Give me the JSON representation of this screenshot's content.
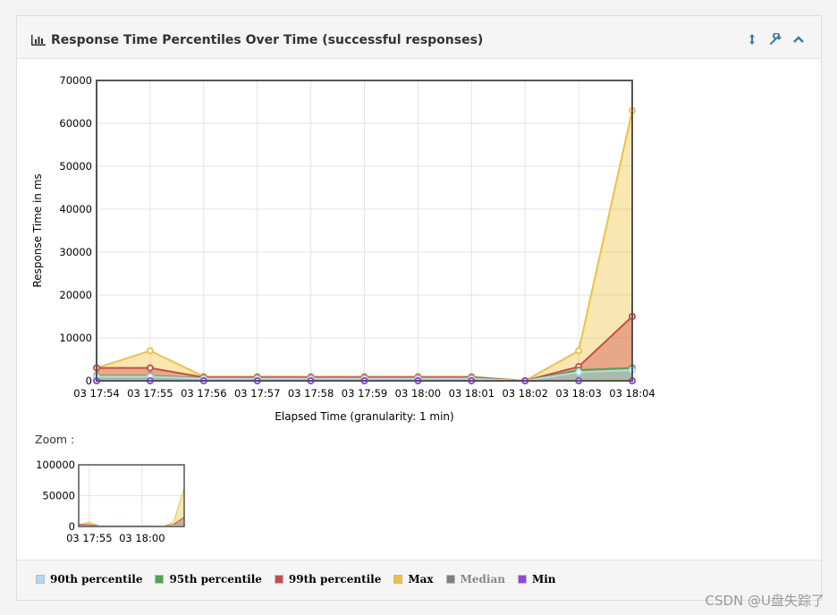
{
  "panel": {
    "title": "Response Time Percentiles Over Time (successful responses)",
    "icons": [
      "bar-chart-icon",
      "resize-icon",
      "wrench-icon",
      "chevron-up-icon"
    ]
  },
  "zoom": {
    "label": "Zoom :"
  },
  "watermark": "CSDN @U盘失踪了",
  "legend": [
    {
      "name": "90th percentile",
      "color": "#afd8f8",
      "visible": true
    },
    {
      "name": "95th percentile",
      "color": "#4da74d",
      "visible": true
    },
    {
      "name": "99th percentile",
      "color": "#cb4b4b",
      "visible": true
    },
    {
      "name": "Max",
      "color": "#edc240",
      "visible": true
    },
    {
      "name": "Median",
      "color": "#808080",
      "visible": false
    },
    {
      "name": "Min",
      "color": "#9440ed",
      "visible": true
    }
  ],
  "chart_data": [
    {
      "type": "area",
      "xlabel": "Elapsed Time (granularity: 1 min)",
      "ylabel": "Response Time in ms",
      "ylim": [
        0,
        70000
      ],
      "yticks": [
        0,
        10000,
        20000,
        30000,
        40000,
        50000,
        60000,
        70000
      ],
      "categories": [
        "03 17:54",
        "03 17:55",
        "03 17:56",
        "03 17:57",
        "03 17:58",
        "03 17:59",
        "03 18:00",
        "03 18:01",
        "03 18:02",
        "03 18:03",
        "03 18:04"
      ],
      "grid": true,
      "series": [
        {
          "name": "Max",
          "color": "#edc240",
          "values": [
            3000,
            7000,
            1000,
            1000,
            1000,
            1000,
            1000,
            1000,
            0,
            7000,
            63000
          ]
        },
        {
          "name": "99th percentile",
          "color": "#cb4b4b",
          "values": [
            3000,
            3000,
            800,
            800,
            800,
            800,
            800,
            800,
            0,
            3300,
            15000
          ]
        },
        {
          "name": "95th percentile",
          "color": "#4da74d",
          "values": [
            1200,
            1200,
            600,
            600,
            600,
            600,
            600,
            600,
            0,
            2500,
            3000
          ]
        },
        {
          "name": "90th percentile",
          "color": "#afd8f8",
          "values": [
            1000,
            1000,
            500,
            500,
            500,
            500,
            500,
            500,
            0,
            2000,
            2500
          ]
        },
        {
          "name": "Min",
          "color": "#9440ed",
          "values": [
            0,
            0,
            0,
            0,
            0,
            0,
            0,
            0,
            0,
            0,
            0
          ]
        }
      ]
    },
    {
      "type": "area",
      "role": "zoom-overview",
      "ylim": [
        0,
        100000
      ],
      "yticks": [
        0,
        50000,
        100000
      ],
      "xticks": [
        "03 17:55",
        "03 18:00"
      ],
      "grid": true
    }
  ]
}
